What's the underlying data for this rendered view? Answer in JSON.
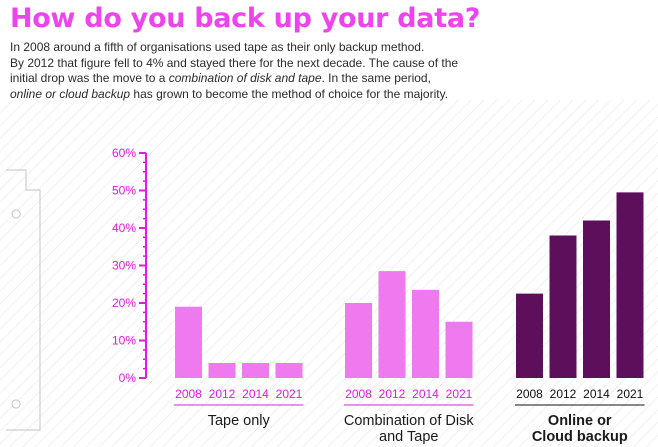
{
  "heading": "How do you back up your data?",
  "intro": {
    "line1": "In 2008 around a fifth of organisations used tape as their only backup method.",
    "line2": "By 2012 that figure fell to 4% and stayed there for the next decade. The cause of the",
    "line3_a": "initial drop was the move to a ",
    "line3_em": "combination of disk and tape",
    "line3_b": ". In the same period,",
    "line4_em": "online or cloud backup",
    "line4_b": " has grown to become the method of choice for the majority."
  },
  "colors": {
    "title": "#ee44ee",
    "axis": "#e21be2",
    "tape": "#ef79ef",
    "disk": "#ef79ef",
    "cloud": "#5e0f5c",
    "hatch": "#dcdcdc",
    "text": "#1a1a1a"
  },
  "chart_data": {
    "type": "bar",
    "ylim": [
      0,
      60
    ],
    "yticks": [
      "0%",
      "10%",
      "20%",
      "30%",
      "40%",
      "50%",
      "60%"
    ],
    "groups": [
      {
        "name": "Tape only",
        "name_lines": [
          "Tape only"
        ],
        "categories": [
          "2008",
          "2012",
          "2014",
          "2021"
        ],
        "values": [
          19,
          4,
          4,
          4
        ],
        "color_key": "tape",
        "bold": false
      },
      {
        "name": "Combination of Disk and Tape",
        "name_lines": [
          "Combination of Disk",
          "and Tape"
        ],
        "categories": [
          "2008",
          "2012",
          "2014",
          "2021"
        ],
        "values": [
          20,
          28.5,
          23.5,
          15
        ],
        "color_key": "disk",
        "bold": false
      },
      {
        "name": "Online or Cloud backup",
        "name_lines": [
          "Online or",
          "Cloud backup"
        ],
        "categories": [
          "2008",
          "2012",
          "2014",
          "2021"
        ],
        "values": [
          22.5,
          38,
          42,
          49.5
        ],
        "color_key": "cloud",
        "bold": true
      }
    ]
  }
}
